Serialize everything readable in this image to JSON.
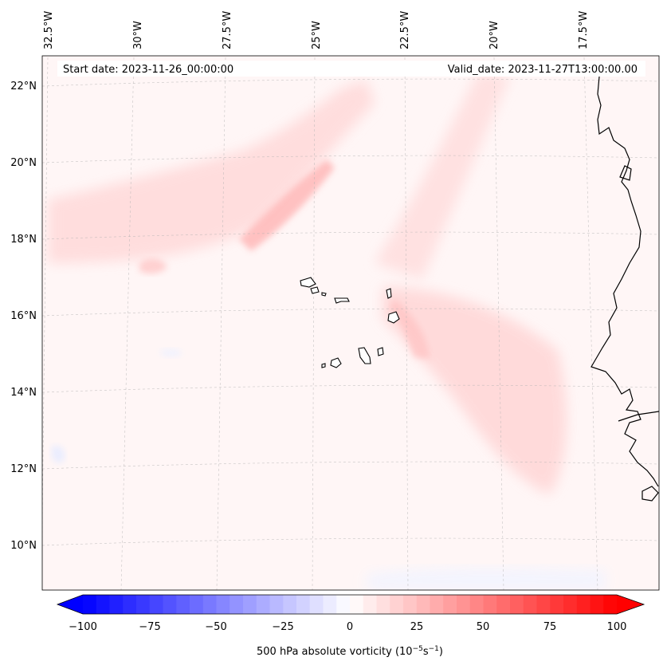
{
  "header": {
    "start_date": "Start date: 2023-11-26_00:00:00",
    "valid_date": "Valid_date: 2023-11-27T13:00:00.00"
  },
  "longitude_labels": [
    "32.5°W",
    "30°W",
    "27.5°W",
    "25°W",
    "22.5°W",
    "20°W",
    "17.5°W"
  ],
  "latitude_labels": [
    "22°N",
    "20°N",
    "18°N",
    "16°N",
    "14°N",
    "12°N",
    "10°N"
  ],
  "colorbar": {
    "label": "500 hPa absolute vorticity (10",
    "label_exp1": "−5",
    "label_mid": "s",
    "label_exp2": "−1",
    "label_end": ")",
    "ticks": [
      "−100",
      "−75",
      "−50",
      "−25",
      "0",
      "25",
      "50",
      "75",
      "100"
    ],
    "min": -100,
    "max": 100,
    "step": 5,
    "low_color": "#0000ff",
    "mid_color": "#ffffff",
    "high_color": "#ff0000"
  },
  "colors": {
    "field_positive": "#ff0000",
    "field_negative": "#0000ff",
    "coast": "#000000"
  }
}
